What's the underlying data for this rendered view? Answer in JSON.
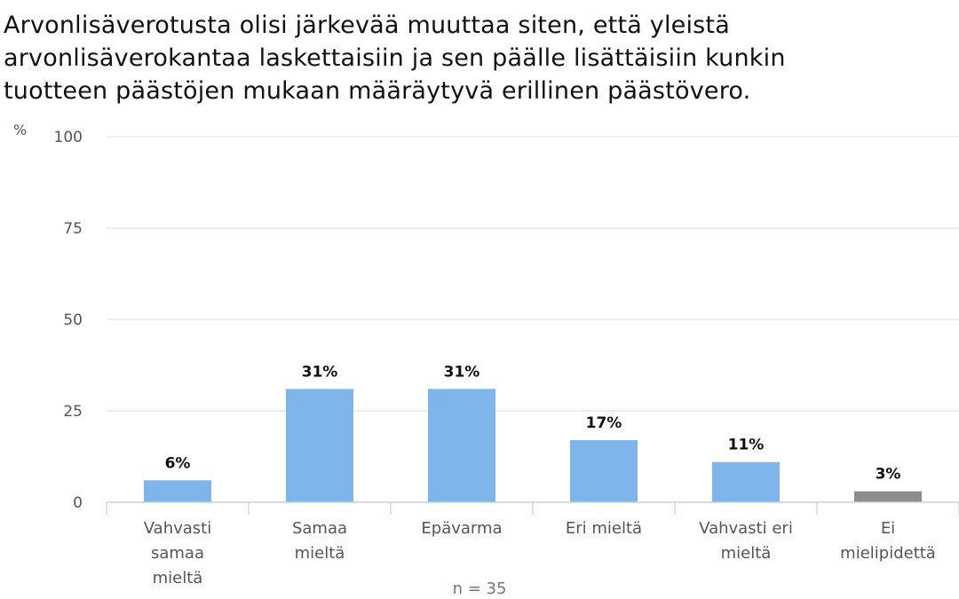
{
  "chart_data": {
    "type": "bar",
    "title_lines": [
      "Arvonlisäverotusta olisi järkevää muuttaa siten, että yleistä",
      "arvonlisäverokantaa laskettaisiin ja sen päälle lisättäisiin kunkin",
      "tuotteen päästöjen mukaan määräytyvä erillinen päästövero."
    ],
    "ylabel": "%",
    "ylim": [
      0,
      100
    ],
    "yticks": [
      0,
      25,
      50,
      75,
      100
    ],
    "grid": true,
    "categories": [
      [
        "Vahvasti",
        "samaa",
        "mieltä"
      ],
      [
        "Samaa",
        "mieltä"
      ],
      [
        "Epävarma"
      ],
      [
        "Eri mieltä"
      ],
      [
        "Vahvasti eri",
        "mieltä"
      ],
      [
        "Ei",
        "mielipidettä"
      ]
    ],
    "values": [
      6,
      31,
      31,
      17,
      11,
      3
    ],
    "value_labels": [
      "6%",
      "31%",
      "31%",
      "17%",
      "11%",
      "3%"
    ],
    "bar_colors": [
      "#7eb6ec",
      "#7eb6ec",
      "#7eb6ec",
      "#7eb6ec",
      "#7eb6ec",
      "#8c8c8c"
    ],
    "footnote": "n = 35"
  }
}
